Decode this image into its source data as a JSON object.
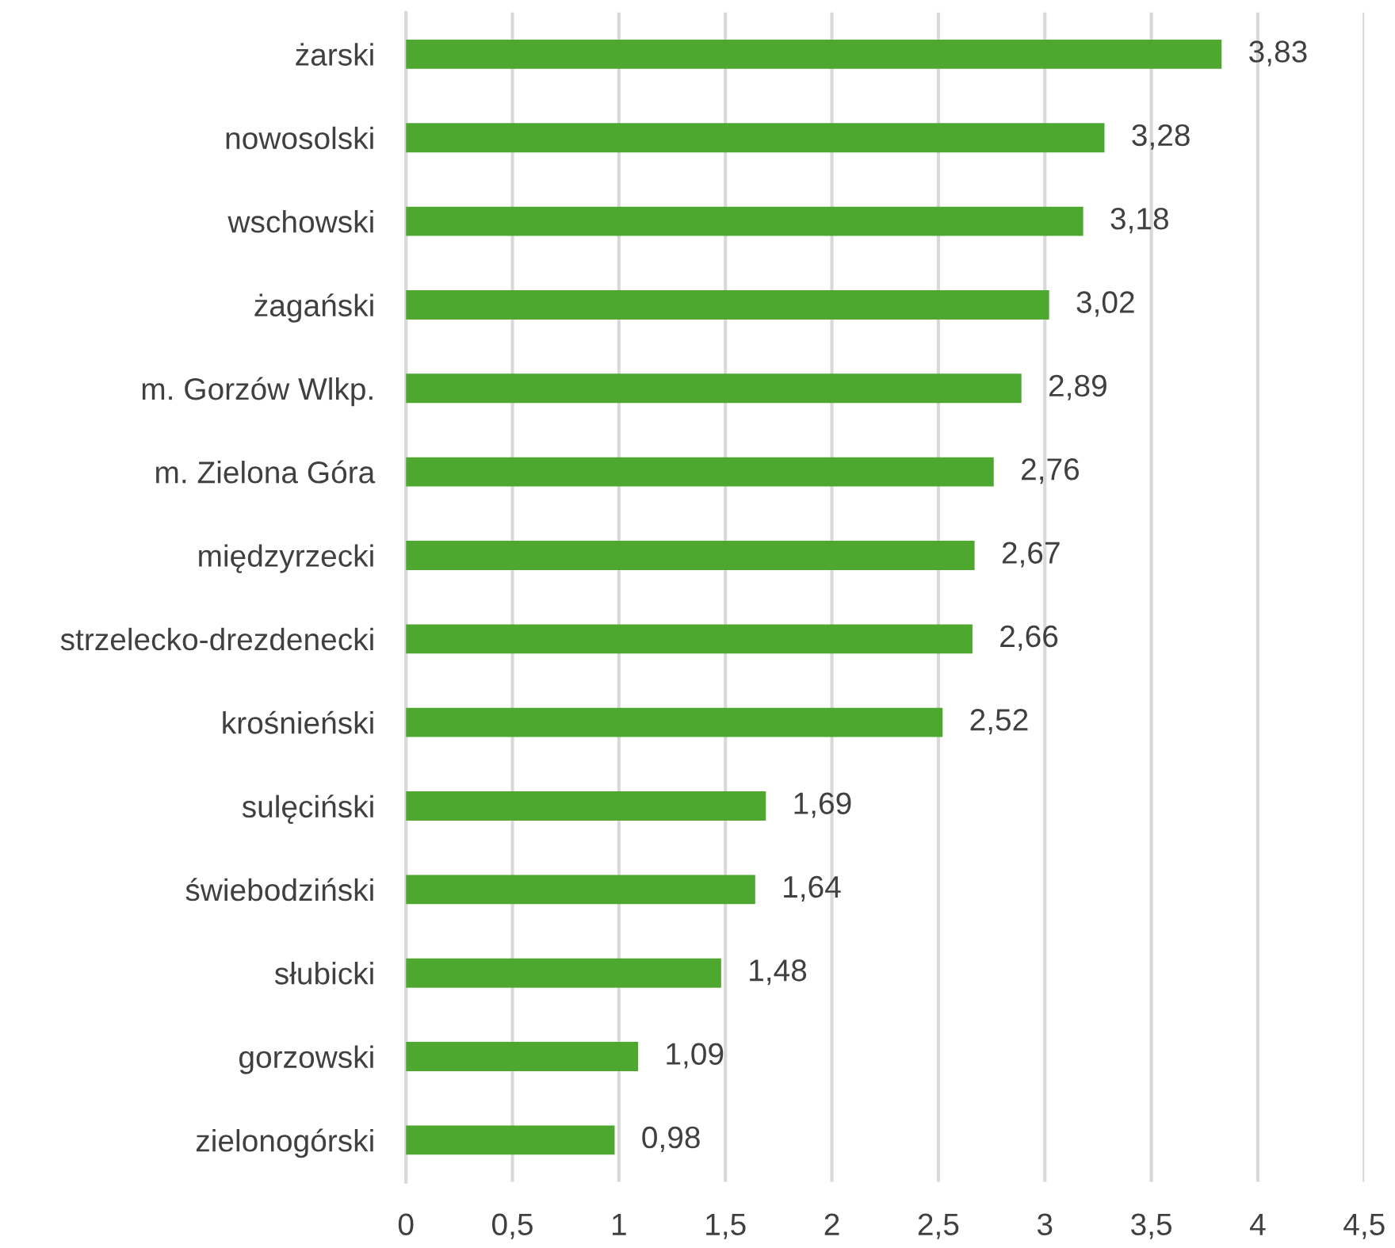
{
  "chart_data": {
    "type": "bar",
    "orientation": "horizontal",
    "categories": [
      "żarski",
      "nowosolski",
      "wschowski",
      "żagański",
      "m. Gorzów Wlkp.",
      "m. Zielona Góra",
      "międzyrzecki",
      "strzelecko-drezdenecki",
      "krośnieński",
      "sulęciński",
      "świebodziński",
      "słubicki",
      "gorzowski",
      "zielonogórski"
    ],
    "values": [
      3.83,
      3.28,
      3.18,
      3.02,
      2.89,
      2.76,
      2.67,
      2.66,
      2.52,
      1.69,
      1.64,
      1.48,
      1.09,
      0.98
    ],
    "value_labels": [
      "3,83",
      "3,28",
      "3,18",
      "3,02",
      "2,89",
      "2,76",
      "2,67",
      "2,66",
      "2,52",
      "1,69",
      "1,64",
      "1,48",
      "1,09",
      "0,98"
    ],
    "color": "#4ea72e",
    "xlim": [
      0,
      4.5
    ],
    "xticks": [
      0,
      {
        "value": 0.5,
        "label": "0,5"
      },
      1,
      {
        "value": 1.5,
        "label": "1,5"
      },
      2,
      {
        "value": 2.5,
        "label": "2,5"
      },
      3,
      {
        "value": 3.5,
        "label": "3,5"
      },
      4,
      {
        "value": 4.5,
        "label": "4,5"
      }
    ],
    "grid": "x",
    "legend": false
  }
}
